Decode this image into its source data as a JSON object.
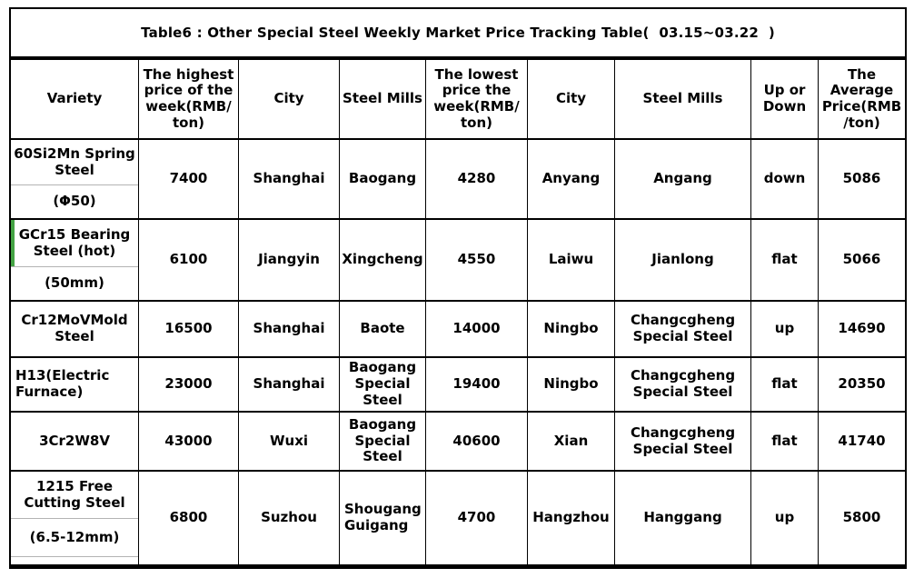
{
  "title": "Table6 : Other Special Steel Weekly Market Price Tracking Table(  03.15~03.22  )",
  "colors": {
    "border": "#000000",
    "background": "#ffffff",
    "sub_divider_gray": "#b3b3b3",
    "selection_green": "#44a344"
  },
  "columns": [
    {
      "label": "Variety"
    },
    {
      "label": "The highest\nprice of the\nweek(RMB/\nton)"
    },
    {
      "label": "City"
    },
    {
      "label": "Steel Mills"
    },
    {
      "label": "The lowest\nprice the\nweek(RMB/\nton)"
    },
    {
      "label": "City"
    },
    {
      "label": "Steel Mills"
    },
    {
      "label": "Up or\nDown"
    },
    {
      "label": "The\nAverage\nPrice(RMB\n/ton)"
    }
  ],
  "rows": [
    {
      "variety": "60Si2Mn Spring\nSteel",
      "spec": "(Φ50)",
      "highest": "7400",
      "city_high": "Shanghai",
      "mill_high": "Baogang",
      "lowest": "4280",
      "city_low": "Anyang",
      "mill_low": "Angang",
      "trend": "down",
      "average": "5086"
    },
    {
      "variety": "GCr15 Bearing\nSteel (hot)",
      "spec": "(50mm)",
      "highest": "6100",
      "city_high": "Jiangyin",
      "mill_high": "Xingcheng",
      "lowest": "4550",
      "city_low": "Laiwu",
      "mill_low": "Jianlong",
      "trend": "flat",
      "average": "5066"
    },
    {
      "variety": "Cr12MoVMold\nSteel",
      "highest": "16500",
      "city_high": "Shanghai",
      "mill_high": "Baote",
      "lowest": "14000",
      "city_low": "Ningbo",
      "mill_low": "Changcgheng\nSpecial Steel",
      "trend": "up",
      "average": "14690"
    },
    {
      "variety": "H13(Electric\nFurnace)",
      "highest": "23000",
      "city_high": "Shanghai",
      "mill_high": "Baogang\nSpecial\nSteel",
      "lowest": "19400",
      "city_low": "Ningbo",
      "mill_low": "Changcgheng\nSpecial Steel",
      "trend": "flat",
      "average": "20350"
    },
    {
      "variety": "3Cr2W8V",
      "highest": "43000",
      "city_high": "Wuxi",
      "mill_high": "Baogang\nSpecial\nSteel",
      "lowest": "40600",
      "city_low": "Xian",
      "mill_low": "Changcgheng\nSpecial Steel",
      "trend": "flat",
      "average": "41740"
    },
    {
      "variety": "1215 Free\nCutting Steel",
      "spec": "(6.5-12mm)",
      "highest": "6800",
      "city_high": "Suzhou",
      "mill_high": "Shougang\nGuigang",
      "lowest": "4700",
      "city_low": "Hangzhou",
      "mill_low": "Hanggang",
      "trend": "up",
      "average": "5800"
    }
  ]
}
